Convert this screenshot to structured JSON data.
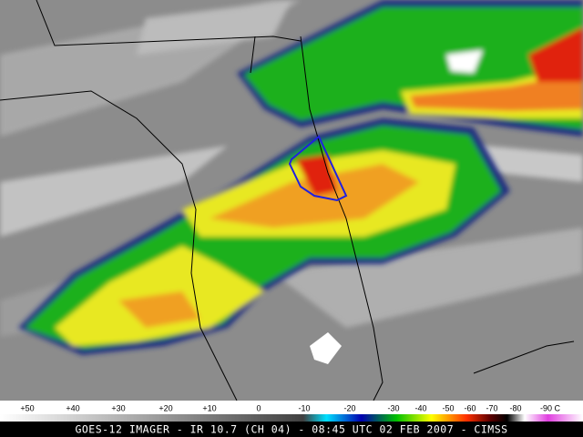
{
  "colorbar": {
    "labels": [
      "+50",
      "+40",
      "+30",
      "+20",
      "+10",
      "0",
      "-10",
      "-20",
      "-30",
      "-40",
      "-50",
      "-60",
      "-70",
      "-80",
      "-90 C"
    ]
  },
  "caption": "GOES-12 IMAGER - IR 10.7 (CH 04) - 08:45 UTC 02 FEB 2007 - CIMSS"
}
